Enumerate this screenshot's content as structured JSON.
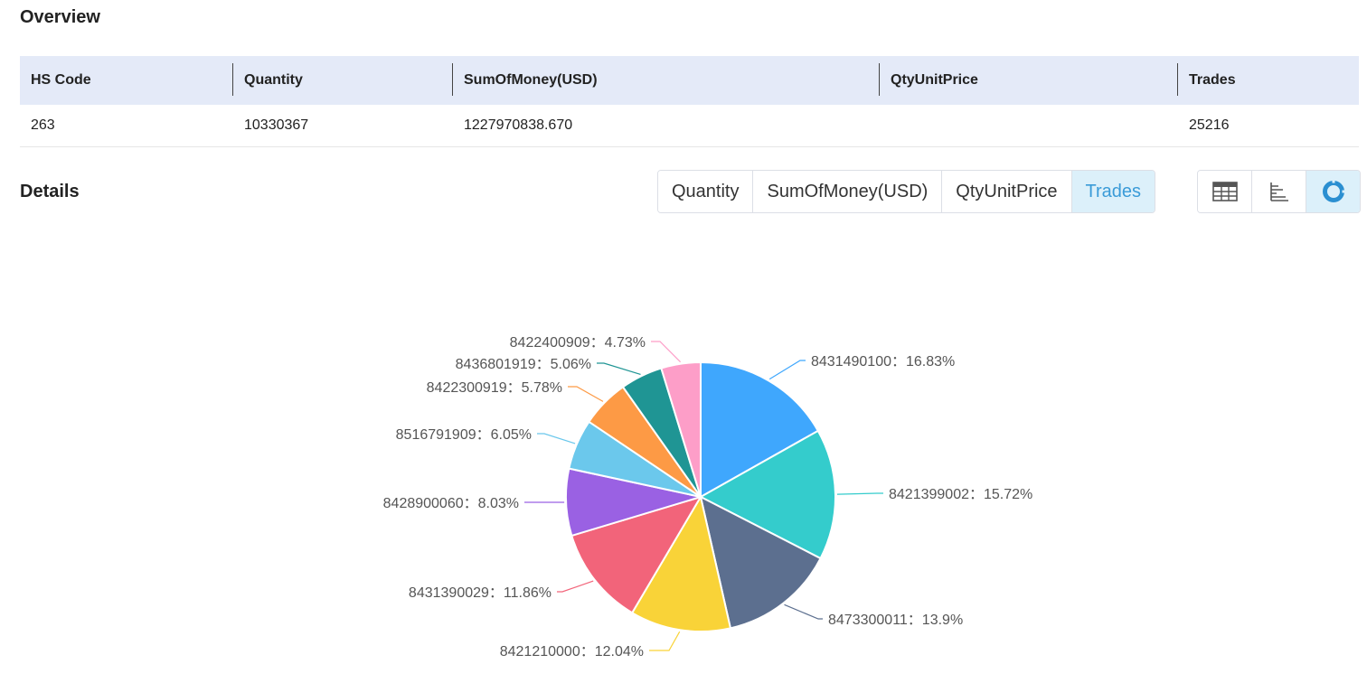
{
  "overview": {
    "title": "Overview",
    "headers": [
      "HS Code",
      "Quantity",
      "SumOfMoney(USD)",
      "QtyUnitPrice",
      "Trades"
    ],
    "row": [
      "263",
      "10330367",
      "1227970838.670",
      "",
      "25216"
    ]
  },
  "details": {
    "title": "Details",
    "tabs": [
      "Quantity",
      "SumOfMoney(USD)",
      "QtyUnitPrice",
      "Trades"
    ],
    "active_tab": "Trades",
    "view_buttons": [
      {
        "icon": "table-icon"
      },
      {
        "icon": "bar-chart-icon"
      },
      {
        "icon": "pie-chart-icon",
        "active": true
      }
    ]
  },
  "colors": {
    "header_bg": "#e4eaf8",
    "active_tab_bg": "#dcf0fa",
    "active_tab_text": "#3a9bd8"
  },
  "chart_data": {
    "type": "pie",
    "label_separator": "：",
    "slices": [
      {
        "label": "8431490100",
        "value": 16.83,
        "display": "16.83%",
        "color": "#3fa7fd"
      },
      {
        "label": "8421399002",
        "value": 15.72,
        "display": "15.72%",
        "color": "#34cccc"
      },
      {
        "label": "8473300011",
        "value": 13.9,
        "display": "13.9%",
        "color": "#5c6f8f"
      },
      {
        "label": "8421210000",
        "value": 12.04,
        "display": "12.04%",
        "color": "#f9d338"
      },
      {
        "label": "8431390029",
        "value": 11.86,
        "display": "11.86%",
        "color": "#f2647a"
      },
      {
        "label": "8428900060",
        "value": 8.03,
        "display": "8.03%",
        "color": "#9a61e3"
      },
      {
        "label": "8516791909",
        "value": 6.05,
        "display": "6.05%",
        "color": "#6bc8ec"
      },
      {
        "label": "8422300919",
        "value": 5.78,
        "display": "5.78%",
        "color": "#fd9a45"
      },
      {
        "label": "8436801919",
        "value": 5.06,
        "display": "5.06%",
        "color": "#1f9594"
      },
      {
        "label": "8422400909",
        "value": 4.73,
        "display": "4.73%",
        "color": "#fd9ec8"
      }
    ]
  }
}
